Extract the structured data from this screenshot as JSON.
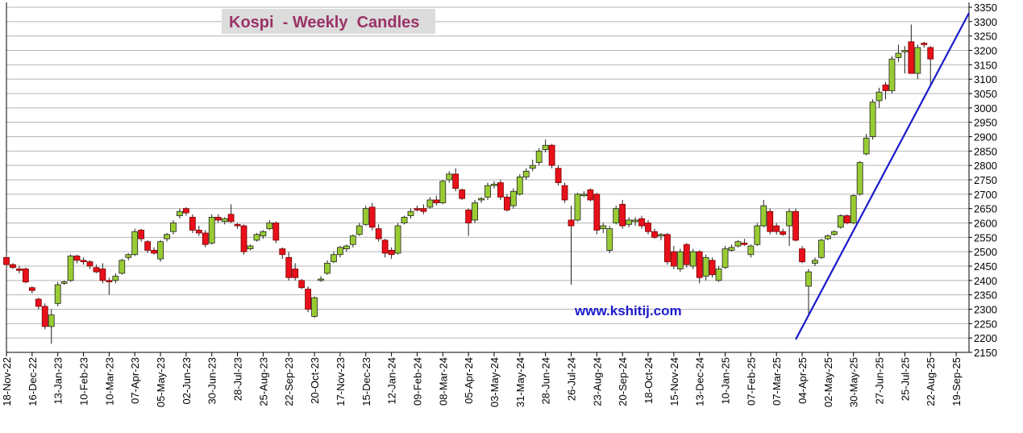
{
  "chart_data": {
    "type": "candlestick",
    "title": "Kospi  - Weekly  Candles",
    "annotation": "www.kshitij.com",
    "up_color": "#99cc33",
    "down_color": "#e8101a",
    "grid": true,
    "ylim": [
      2150,
      3350
    ],
    "yticks": [
      2150,
      2200,
      2250,
      2300,
      2350,
      2400,
      2450,
      2500,
      2550,
      2600,
      2650,
      2700,
      2750,
      2800,
      2850,
      2900,
      2950,
      3000,
      3050,
      3100,
      3150,
      3200,
      3250,
      3300,
      3350
    ],
    "xlim": [
      "2022-11-18",
      "2025-10-03"
    ],
    "xticks": [
      {
        "value": "2022-11-18",
        "label": "18-Nov-22"
      },
      {
        "value": "2022-12-16",
        "label": "16-Dec-22"
      },
      {
        "value": "2023-01-13",
        "label": "13-Jan-23"
      },
      {
        "value": "2023-02-10",
        "label": "10-Feb-23"
      },
      {
        "value": "2023-03-10",
        "label": "10-Mar-23"
      },
      {
        "value": "2023-04-07",
        "label": "07-Apr-23"
      },
      {
        "value": "2023-05-05",
        "label": "05-May-23"
      },
      {
        "value": "2023-06-02",
        "label": "02-Jun-23"
      },
      {
        "value": "2023-06-30",
        "label": "30-Jun-23"
      },
      {
        "value": "2023-07-28",
        "label": "28-Jul-23"
      },
      {
        "value": "2023-08-25",
        "label": "25-Aug-23"
      },
      {
        "value": "2023-09-22",
        "label": "22-Sep-23"
      },
      {
        "value": "2023-10-20",
        "label": "20-Oct-23"
      },
      {
        "value": "2023-11-17",
        "label": "17-Nov-23"
      },
      {
        "value": "2023-12-15",
        "label": "15-Dec-23"
      },
      {
        "value": "2024-01-12",
        "label": "12-Jan-24"
      },
      {
        "value": "2024-02-09",
        "label": "09-Feb-24"
      },
      {
        "value": "2024-03-08",
        "label": "08-Mar-24"
      },
      {
        "value": "2024-04-05",
        "label": "05-Apr-24"
      },
      {
        "value": "2024-05-03",
        "label": "03-May-24"
      },
      {
        "value": "2024-05-31",
        "label": "31-May-24"
      },
      {
        "value": "2024-06-28",
        "label": "28-Jun-24"
      },
      {
        "value": "2024-07-26",
        "label": "26-Jul-24"
      },
      {
        "value": "2024-08-23",
        "label": "23-Aug-24"
      },
      {
        "value": "2024-09-20",
        "label": "20-Sep-24"
      },
      {
        "value": "2024-10-18",
        "label": "18-Oct-24"
      },
      {
        "value": "2024-11-15",
        "label": "15-Nov-24"
      },
      {
        "value": "2024-12-13",
        "label": "13-Dec-24"
      },
      {
        "value": "2025-01-10",
        "label": "10-Jan-25"
      },
      {
        "value": "2025-02-07",
        "label": "07-Feb-25"
      },
      {
        "value": "2025-03-07",
        "label": "07-Mar-25"
      },
      {
        "value": "2025-04-04",
        "label": "04-Apr-25"
      },
      {
        "value": "2025-05-02",
        "label": "02-May-25"
      },
      {
        "value": "2025-05-30",
        "label": "30-May-25"
      },
      {
        "value": "2025-06-27",
        "label": "27-Jun-25"
      },
      {
        "value": "2025-07-25",
        "label": "25-Jul-25"
      },
      {
        "value": "2025-08-22",
        "label": "22-Aug-25"
      },
      {
        "value": "2025-09-19",
        "label": "19-Sep-25"
      }
    ],
    "x": [
      "2022-11-18",
      "2022-11-25",
      "2022-12-02",
      "2022-12-09",
      "2022-12-16",
      "2022-12-23",
      "2022-12-30",
      "2023-01-06",
      "2023-01-13",
      "2023-01-20",
      "2023-01-27",
      "2023-02-03",
      "2023-02-10",
      "2023-02-17",
      "2023-02-24",
      "2023-03-03",
      "2023-03-10",
      "2023-03-17",
      "2023-03-24",
      "2023-03-31",
      "2023-04-07",
      "2023-04-14",
      "2023-04-21",
      "2023-04-28",
      "2023-05-05",
      "2023-05-12",
      "2023-05-19",
      "2023-05-26",
      "2023-06-02",
      "2023-06-09",
      "2023-06-16",
      "2023-06-23",
      "2023-06-30",
      "2023-07-07",
      "2023-07-14",
      "2023-07-21",
      "2023-07-28",
      "2023-08-04",
      "2023-08-11",
      "2023-08-18",
      "2023-08-25",
      "2023-09-01",
      "2023-09-08",
      "2023-09-15",
      "2023-09-22",
      "2023-09-29",
      "2023-10-06",
      "2023-10-13",
      "2023-10-20",
      "2023-10-27",
      "2023-11-03",
      "2023-11-10",
      "2023-11-17",
      "2023-11-24",
      "2023-12-01",
      "2023-12-08",
      "2023-12-15",
      "2023-12-22",
      "2023-12-29",
      "2024-01-05",
      "2024-01-12",
      "2024-01-19",
      "2024-01-26",
      "2024-02-02",
      "2024-02-09",
      "2024-02-16",
      "2024-02-23",
      "2024-03-01",
      "2024-03-08",
      "2024-03-15",
      "2024-03-22",
      "2024-03-29",
      "2024-04-05",
      "2024-04-12",
      "2024-04-19",
      "2024-04-26",
      "2024-05-03",
      "2024-05-10",
      "2024-05-17",
      "2024-05-24",
      "2024-05-31",
      "2024-06-07",
      "2024-06-14",
      "2024-06-21",
      "2024-06-28",
      "2024-07-05",
      "2024-07-12",
      "2024-07-19",
      "2024-07-26",
      "2024-08-02",
      "2024-08-09",
      "2024-08-16",
      "2024-08-23",
      "2024-08-30",
      "2024-09-06",
      "2024-09-13",
      "2024-09-20",
      "2024-09-27",
      "2024-10-04",
      "2024-10-11",
      "2024-10-18",
      "2024-10-25",
      "2024-11-01",
      "2024-11-08",
      "2024-11-15",
      "2024-11-22",
      "2024-11-29",
      "2024-12-06",
      "2024-12-13",
      "2024-12-20",
      "2024-12-27",
      "2025-01-03",
      "2025-01-10",
      "2025-01-17",
      "2025-01-24",
      "2025-01-31",
      "2025-02-07",
      "2025-02-14",
      "2025-02-21",
      "2025-02-28",
      "2025-03-07",
      "2025-03-14",
      "2025-03-21",
      "2025-03-28",
      "2025-04-04",
      "2025-04-11",
      "2025-04-18",
      "2025-04-25",
      "2025-05-02",
      "2025-05-09",
      "2025-05-16",
      "2025-05-23",
      "2025-05-30",
      "2025-06-06",
      "2025-06-13",
      "2025-06-20",
      "2025-06-27",
      "2025-07-04",
      "2025-07-11",
      "2025-07-18",
      "2025-07-25",
      "2025-08-01",
      "2025-08-08",
      "2025-08-15",
      "2025-08-22"
    ],
    "open": [
      2480,
      2455,
      2440,
      2440,
      2375,
      2335,
      2310,
      2240,
      2320,
      2390,
      2400,
      2485,
      2470,
      2465,
      2445,
      2440,
      2400,
      2400,
      2425,
      2480,
      2490,
      2575,
      2535,
      2505,
      2475,
      2545,
      2570,
      2625,
      2650,
      2620,
      2575,
      2565,
      2530,
      2620,
      2605,
      2630,
      2595,
      2590,
      2510,
      2540,
      2555,
      2580,
      2600,
      2510,
      2480,
      2440,
      2400,
      2370,
      2275,
      2400,
      2425,
      2465,
      2490,
      2510,
      2525,
      2560,
      2595,
      2655,
      2580,
      2540,
      2505,
      2495,
      2600,
      2625,
      2650,
      2650,
      2655,
      2680,
      2670,
      2750,
      2770,
      2715,
      2645,
      2610,
      2680,
      2690,
      2730,
      2740,
      2690,
      2660,
      2700,
      2760,
      2790,
      2810,
      2855,
      2870,
      2790,
      2730,
      2610,
      2610,
      2695,
      2715,
      2700,
      2580,
      2505,
      2600,
      2665,
      2595,
      2605,
      2615,
      2600,
      2570,
      2555,
      2560,
      2500,
      2440,
      2525,
      2450,
      2500,
      2415,
      2470,
      2400,
      2445,
      2505,
      2520,
      2530,
      2490,
      2525,
      2590,
      2640,
      2590,
      2570,
      2590,
      2640,
      2510,
      2380,
      2460,
      2480,
      2545,
      2560,
      2585,
      2625,
      2600,
      2700,
      2840,
      2900,
      3025,
      3080,
      3060,
      3175,
      3195,
      3230,
      3120,
      3225,
      3210
    ],
    "high": [
      2500,
      2460,
      2450,
      2445,
      2380,
      2340,
      2320,
      2300,
      2395,
      2400,
      2490,
      2490,
      2480,
      2470,
      2455,
      2460,
      2410,
      2425,
      2475,
      2495,
      2580,
      2580,
      2540,
      2515,
      2540,
      2565,
      2610,
      2650,
      2655,
      2630,
      2590,
      2575,
      2630,
      2630,
      2620,
      2665,
      2600,
      2595,
      2525,
      2565,
      2575,
      2610,
      2605,
      2515,
      2500,
      2460,
      2405,
      2380,
      2345,
      2415,
      2470,
      2500,
      2520,
      2525,
      2560,
      2600,
      2660,
      2670,
      2595,
      2545,
      2515,
      2600,
      2625,
      2650,
      2660,
      2665,
      2690,
      2695,
      2750,
      2780,
      2790,
      2720,
      2650,
      2680,
      2690,
      2740,
      2745,
      2750,
      2700,
      2720,
      2770,
      2790,
      2820,
      2860,
      2890,
      2875,
      2800,
      2740,
      2660,
      2705,
      2710,
      2720,
      2705,
      2600,
      2590,
      2660,
      2680,
      2620,
      2620,
      2625,
      2610,
      2580,
      2565,
      2565,
      2520,
      2510,
      2530,
      2510,
      2505,
      2490,
      2480,
      2450,
      2520,
      2525,
      2540,
      2545,
      2525,
      2600,
      2680,
      2650,
      2600,
      2580,
      2650,
      2650,
      2520,
      2440,
      2480,
      2545,
      2560,
      2575,
      2630,
      2630,
      2700,
      2815,
      2910,
      3030,
      3070,
      3090,
      3180,
      3220,
      3215,
      3290,
      3220,
      3230,
      3215
    ],
    "low": [
      2440,
      2440,
      2425,
      2390,
      2355,
      2300,
      2230,
      2180,
      2310,
      2385,
      2395,
      2460,
      2455,
      2440,
      2425,
      2390,
      2350,
      2390,
      2420,
      2470,
      2485,
      2535,
      2495,
      2490,
      2465,
      2535,
      2560,
      2615,
      2625,
      2565,
      2555,
      2515,
      2525,
      2600,
      2595,
      2600,
      2580,
      2490,
      2505,
      2535,
      2545,
      2575,
      2530,
      2475,
      2400,
      2400,
      2370,
      2290,
      2270,
      2395,
      2420,
      2460,
      2480,
      2500,
      2515,
      2555,
      2590,
      2575,
      2535,
      2480,
      2475,
      2490,
      2595,
      2615,
      2640,
      2630,
      2650,
      2660,
      2665,
      2740,
      2710,
      2680,
      2555,
      2600,
      2670,
      2680,
      2720,
      2680,
      2640,
      2650,
      2695,
      2750,
      2780,
      2800,
      2845,
      2790,
      2730,
      2670,
      2385,
      2605,
      2690,
      2675,
      2560,
      2565,
      2495,
      2595,
      2580,
      2585,
      2590,
      2580,
      2560,
      2545,
      2540,
      2455,
      2440,
      2430,
      2445,
      2440,
      2390,
      2400,
      2410,
      2395,
      2440,
      2500,
      2515,
      2520,
      2480,
      2520,
      2585,
      2560,
      2560,
      2555,
      2520,
      2535,
      2460,
      2280,
      2450,
      2475,
      2540,
      2555,
      2580,
      2595,
      2595,
      2695,
      2835,
      2890,
      3000,
      3030,
      3050,
      3160,
      3120,
      3120,
      3100,
      3210,
      3080
    ],
    "close": [
      2455,
      2445,
      2435,
      2395,
      2365,
      2310,
      2240,
      2280,
      2385,
      2395,
      2485,
      2470,
      2465,
      2450,
      2430,
      2400,
      2395,
      2415,
      2470,
      2490,
      2570,
      2545,
      2505,
      2495,
      2535,
      2560,
      2600,
      2640,
      2635,
      2575,
      2565,
      2525,
      2620,
      2610,
      2615,
      2605,
      2590,
      2500,
      2520,
      2560,
      2570,
      2600,
      2540,
      2490,
      2410,
      2410,
      2375,
      2300,
      2340,
      2405,
      2460,
      2490,
      2515,
      2520,
      2555,
      2590,
      2650,
      2585,
      2545,
      2495,
      2490,
      2590,
      2620,
      2640,
      2645,
      2640,
      2680,
      2670,
      2745,
      2770,
      2720,
      2685,
      2600,
      2670,
      2685,
      2730,
      2735,
      2690,
      2645,
      2710,
      2760,
      2780,
      2800,
      2850,
      2870,
      2800,
      2740,
      2680,
      2590,
      2700,
      2700,
      2680,
      2575,
      2590,
      2580,
      2650,
      2590,
      2610,
      2610,
      2590,
      2570,
      2550,
      2560,
      2465,
      2450,
      2500,
      2455,
      2500,
      2410,
      2480,
      2420,
      2440,
      2510,
      2515,
      2535,
      2525,
      2520,
      2590,
      2660,
      2570,
      2570,
      2560,
      2640,
      2540,
      2465,
      2430,
      2470,
      2540,
      2555,
      2570,
      2625,
      2600,
      2695,
      2810,
      2895,
      3020,
      3055,
      3060,
      3170,
      3190,
      3200,
      3120,
      3210,
      3220,
      3170
    ],
    "trendline": {
      "x": [
        "2025-03-28",
        "2025-10-03"
      ],
      "y": [
        2195,
        3330
      ],
      "color": "#1a1acc"
    }
  }
}
